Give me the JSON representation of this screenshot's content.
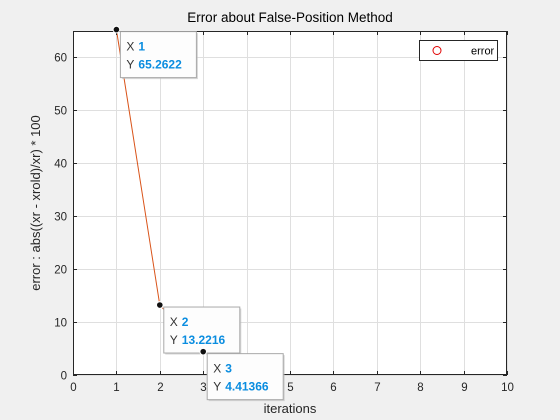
{
  "chart_data": {
    "type": "line",
    "title": "Error about False-Position Method",
    "xlabel": "iterations",
    "ylabel": "error : abs((xr - xrold)/xr) * 100",
    "xlim": [
      0,
      10
    ],
    "ylim": [
      0,
      65
    ],
    "xticks": [
      "0",
      "1",
      "2",
      "3",
      "4",
      "5",
      "6",
      "7",
      "8",
      "9",
      "10"
    ],
    "yticks": [
      "0",
      "10",
      "20",
      "30",
      "40",
      "50",
      "60"
    ],
    "grid": true,
    "legend": {
      "position": "top-right"
    },
    "series": [
      {
        "name": "error",
        "x": [
          1,
          2,
          3
        ],
        "y": [
          65.2622,
          13.2216,
          4.41366
        ],
        "color": "#d95319"
      }
    ],
    "datatips": [
      {
        "x_key": "X",
        "x_value": "1",
        "y_key": "Y",
        "y_value": "65.2622"
      },
      {
        "x_key": "X",
        "x_value": "2",
        "y_key": "Y",
        "y_value": "13.2216"
      },
      {
        "x_key": "X",
        "x_value": "3",
        "y_key": "Y",
        "y_value": "4.41366"
      }
    ],
    "colors": {
      "axes_bg": "#ffffff",
      "grid": "#dfdfdf",
      "axis": "#262626",
      "tip_value": "#0a8de0",
      "legend_marker": "#e00000"
    }
  }
}
